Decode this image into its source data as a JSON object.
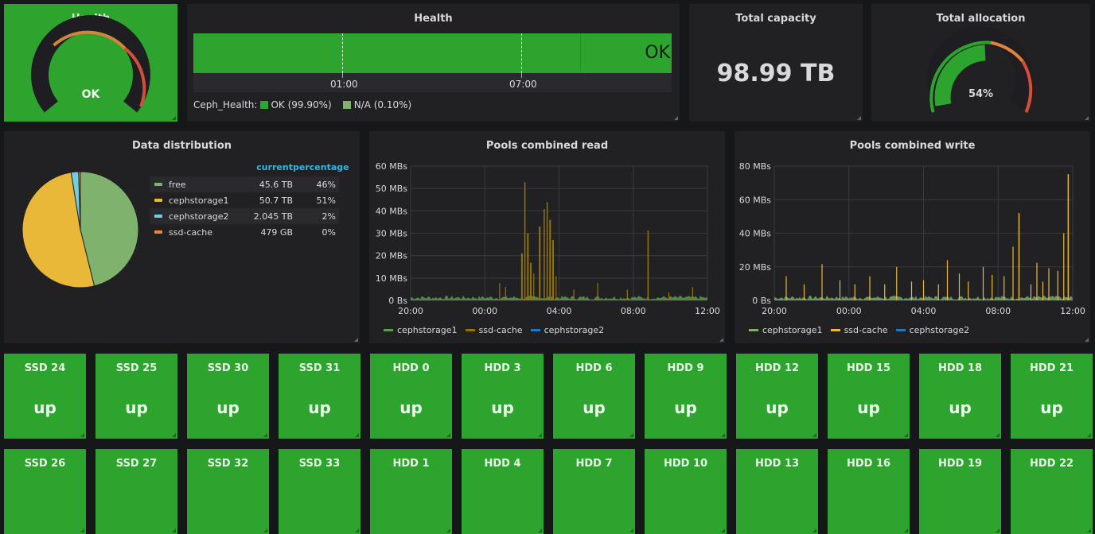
{
  "health_gauge": {
    "title": "Health",
    "value": "OK"
  },
  "health_timeline": {
    "title": "Health",
    "status": "OK",
    "times": [
      "01:00",
      "07:00"
    ],
    "legend_prefix": "Ceph_Health:",
    "legend": [
      {
        "label": "OK (99.90%)",
        "color": "#2da42d"
      },
      {
        "label": "N/A (0.10%)",
        "color": "#7eb26d"
      }
    ]
  },
  "total_capacity": {
    "title": "Total capacity",
    "value": "98.99 TB"
  },
  "total_allocation": {
    "title": "Total allocation",
    "value": "54%",
    "percent": 54
  },
  "data_distribution": {
    "title": "Data distribution",
    "headers": {
      "current": "current",
      "percentage": "percentage"
    },
    "rows": [
      {
        "name": "free",
        "current": "45.6 TB",
        "percentage": "46%",
        "color": "#7eb26d",
        "pct": 45.6
      },
      {
        "name": "cephstorage1",
        "current": "50.7 TB",
        "percentage": "51%",
        "color": "#eab839",
        "pct": 50.7
      },
      {
        "name": "cephstorage2",
        "current": "2.045 TB",
        "percentage": "2%",
        "color": "#6ed0e0",
        "pct": 2.045
      },
      {
        "name": "ssd-cache",
        "current": "479 GB",
        "percentage": "0%",
        "color": "#ef843c",
        "pct": 0.479
      }
    ]
  },
  "pools_read": {
    "title": "Pools combined read",
    "yticks": [
      "60 MBs",
      "50 MBs",
      "40 MBs",
      "30 MBs",
      "20 MBs",
      "10 MBs",
      "0 Bs"
    ],
    "xticks": [
      "20:00",
      "00:00",
      "04:00",
      "08:00",
      "12:00"
    ],
    "legend": [
      {
        "name": "cephstorage1",
        "color": "#629e51"
      },
      {
        "name": "ssd-cache",
        "color": "#967302"
      },
      {
        "name": "cephstorage2",
        "color": "#1f78c1"
      }
    ]
  },
  "pools_write": {
    "title": "Pools combined write",
    "yticks": [
      "80 MBs",
      "60 MBs",
      "40 MBs",
      "20 MBs",
      "0 Bs"
    ],
    "xticks": [
      "20:00",
      "00:00",
      "04:00",
      "08:00",
      "12:00"
    ],
    "legend": [
      {
        "name": "cephstorage1",
        "color": "#7eb26d"
      },
      {
        "name": "ssd-cache",
        "color": "#eab839"
      },
      {
        "name": "cephstorage2",
        "color": "#1f78c1"
      }
    ]
  },
  "osds_row1": [
    {
      "title": "SSD 24",
      "value": "up"
    },
    {
      "title": "SSD 25",
      "value": "up"
    },
    {
      "title": "SSD 30",
      "value": "up"
    },
    {
      "title": "SSD 31",
      "value": "up"
    },
    {
      "title": "HDD 0",
      "value": "up"
    },
    {
      "title": "HDD 3",
      "value": "up"
    },
    {
      "title": "HDD 6",
      "value": "up"
    },
    {
      "title": "HDD 9",
      "value": "up"
    },
    {
      "title": "HDD 12",
      "value": "up"
    },
    {
      "title": "HDD 15",
      "value": "up"
    },
    {
      "title": "HDD 18",
      "value": "up"
    },
    {
      "title": "HDD 21",
      "value": "up"
    }
  ],
  "osds_row2": [
    {
      "title": "SSD 26"
    },
    {
      "title": "SSD 27"
    },
    {
      "title": "SSD 32"
    },
    {
      "title": "SSD 33"
    },
    {
      "title": "HDD 1"
    },
    {
      "title": "HDD 4"
    },
    {
      "title": "HDD 7"
    },
    {
      "title": "HDD 10"
    },
    {
      "title": "HDD 13"
    },
    {
      "title": "HDD 16"
    },
    {
      "title": "HDD 19"
    },
    {
      "title": "HDD 22"
    }
  ]
}
